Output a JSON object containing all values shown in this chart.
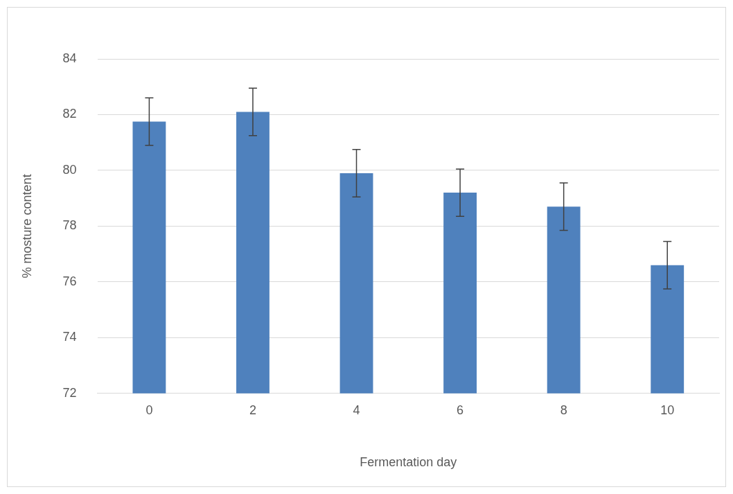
{
  "chart_data": {
    "type": "bar",
    "xlabel": "Fermentation day",
    "ylabel": "% mosture content",
    "categories": [
      "0",
      "2",
      "4",
      "6",
      "8",
      "10"
    ],
    "values": [
      81.75,
      82.1,
      79.9,
      79.2,
      78.7,
      76.6
    ],
    "errors": [
      0.85,
      0.85,
      0.85,
      0.85,
      0.85,
      0.85
    ],
    "color": "#4f81bd",
    "ylim": [
      72,
      84
    ],
    "yticks": [
      72,
      74,
      76,
      78,
      80,
      82,
      84
    ],
    "grid": "y",
    "legend": false
  }
}
